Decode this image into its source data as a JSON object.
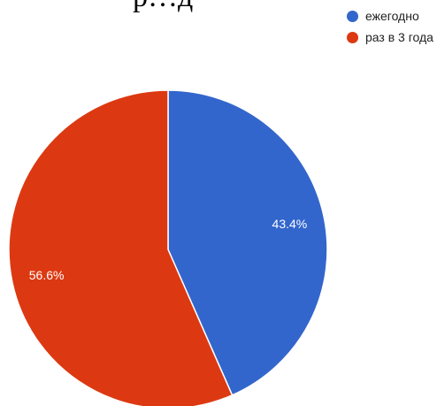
{
  "chart_data": {
    "type": "pie",
    "title": "р…д",
    "categories": [
      "ежегодно",
      "раз в 3 года"
    ],
    "values": [
      43.4,
      56.6
    ],
    "labels": [
      "43.4%",
      "56.6%"
    ],
    "colors": [
      "#3366cc",
      "#dc3912"
    ],
    "legend": "top-right",
    "start_angle": "12 o'clock, clockwise"
  }
}
